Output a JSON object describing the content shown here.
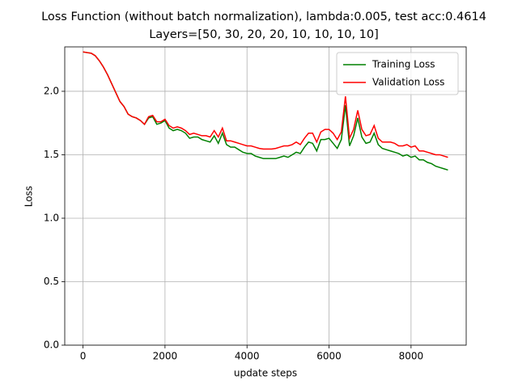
{
  "chart_data": {
    "type": "line",
    "title": [
      "Loss Function (without batch normalization), lambda:0.005, test acc:0.4614",
      "Layers=[50, 30, 20, 20, 10, 10, 10, 10]"
    ],
    "x_label": "update steps",
    "y_label": "Loss",
    "x": [
      0,
      100,
      200,
      300,
      400,
      500,
      600,
      700,
      800,
      900,
      1000,
      1100,
      1200,
      1300,
      1400,
      1500,
      1600,
      1700,
      1800,
      1900,
      2000,
      2100,
      2200,
      2300,
      2400,
      2500,
      2600,
      2700,
      2800,
      2900,
      3000,
      3100,
      3200,
      3300,
      3400,
      3500,
      3600,
      3700,
      3800,
      3900,
      4000,
      4100,
      4200,
      4300,
      4400,
      4500,
      4600,
      4700,
      4800,
      4900,
      5000,
      5100,
      5200,
      5300,
      5400,
      5500,
      5600,
      5700,
      5800,
      5900,
      6000,
      6100,
      6200,
      6300,
      6400,
      6500,
      6600,
      6700,
      6800,
      6900,
      7000,
      7100,
      7200,
      7300,
      7400,
      7500,
      7600,
      7700,
      7800,
      7900,
      8000,
      8100,
      8200,
      8300,
      8400,
      8500,
      8600,
      8700,
      8800,
      8900
    ],
    "series": [
      {
        "name": "Training Loss",
        "color": "#008000",
        "values": [
          2.31,
          2.305,
          2.3,
          2.28,
          2.24,
          2.19,
          2.13,
          2.06,
          1.99,
          1.92,
          1.88,
          1.82,
          1.8,
          1.79,
          1.77,
          1.74,
          1.79,
          1.8,
          1.74,
          1.75,
          1.77,
          1.71,
          1.69,
          1.7,
          1.69,
          1.67,
          1.63,
          1.64,
          1.64,
          1.62,
          1.61,
          1.6,
          1.65,
          1.59,
          1.67,
          1.58,
          1.56,
          1.56,
          1.54,
          1.52,
          1.51,
          1.51,
          1.49,
          1.48,
          1.47,
          1.47,
          1.47,
          1.47,
          1.48,
          1.49,
          1.48,
          1.5,
          1.52,
          1.51,
          1.56,
          1.6,
          1.59,
          1.53,
          1.62,
          1.62,
          1.63,
          1.59,
          1.55,
          1.62,
          1.89,
          1.57,
          1.65,
          1.79,
          1.64,
          1.59,
          1.6,
          1.67,
          1.58,
          1.55,
          1.54,
          1.53,
          1.52,
          1.51,
          1.49,
          1.5,
          1.48,
          1.49,
          1.46,
          1.46,
          1.44,
          1.43,
          1.41,
          1.4,
          1.39,
          1.38
        ]
      },
      {
        "name": "Validation Loss",
        "color": "#ff0000",
        "values": [
          2.31,
          2.305,
          2.3,
          2.28,
          2.24,
          2.19,
          2.13,
          2.06,
          1.99,
          1.92,
          1.88,
          1.82,
          1.8,
          1.79,
          1.77,
          1.74,
          1.8,
          1.81,
          1.76,
          1.76,
          1.78,
          1.73,
          1.71,
          1.72,
          1.71,
          1.69,
          1.66,
          1.67,
          1.66,
          1.65,
          1.65,
          1.64,
          1.69,
          1.64,
          1.71,
          1.61,
          1.61,
          1.6,
          1.59,
          1.58,
          1.57,
          1.57,
          1.56,
          1.55,
          1.545,
          1.545,
          1.545,
          1.55,
          1.56,
          1.57,
          1.57,
          1.58,
          1.6,
          1.58,
          1.63,
          1.67,
          1.67,
          1.6,
          1.68,
          1.7,
          1.7,
          1.67,
          1.62,
          1.68,
          1.96,
          1.63,
          1.7,
          1.85,
          1.7,
          1.65,
          1.66,
          1.73,
          1.63,
          1.6,
          1.6,
          1.6,
          1.59,
          1.57,
          1.57,
          1.58,
          1.56,
          1.57,
          1.53,
          1.53,
          1.52,
          1.51,
          1.5,
          1.5,
          1.49,
          1.48
        ]
      }
    ],
    "xlim": [
      -445,
      9345
    ],
    "ylim": [
      0,
      2.35
    ],
    "xticks": [
      0,
      2000,
      4000,
      6000,
      8000
    ],
    "yticks": [
      {
        "value": 0,
        "label": "0.0"
      },
      0.5,
      {
        "value": 1,
        "label": "1.0"
      },
      1.5,
      {
        "value": 2,
        "label": "2.0"
      }
    ],
    "grid": true,
    "legend": "upper-right"
  }
}
